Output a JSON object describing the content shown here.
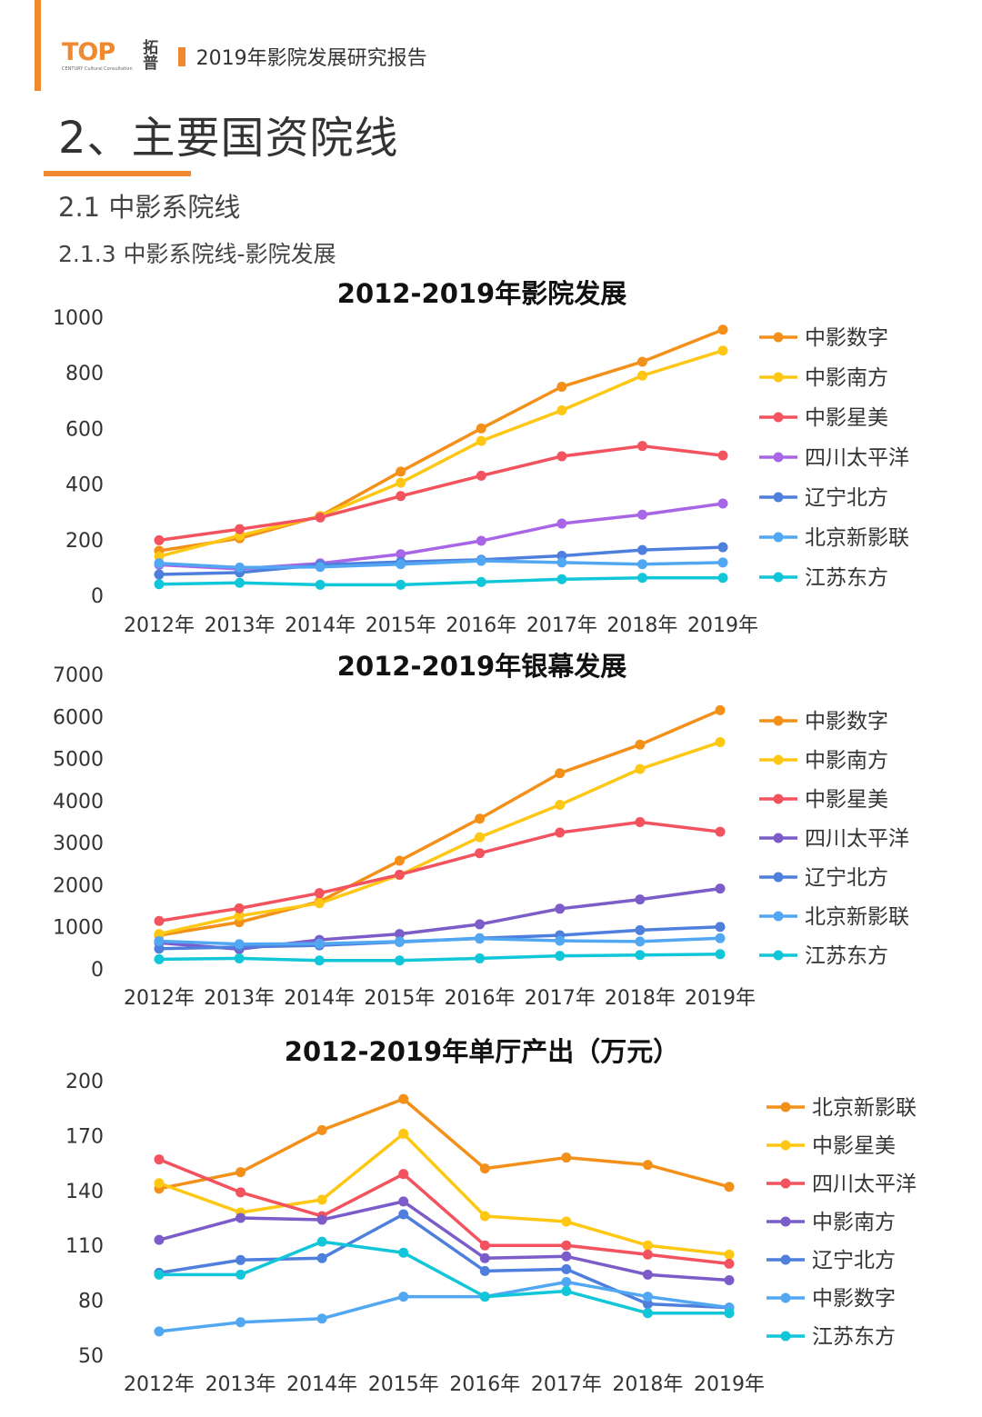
{
  "header": {
    "logo_text": "TOP",
    "logo_sub": "CENTURY Cultural Consultation",
    "logo_cn": "拓普",
    "report_title": "2019年影院发展研究报告"
  },
  "section": {
    "title": "2、主要国资院线",
    "subtitle": "2.1 中影系院线",
    "subsubtitle": "2.1.3 中影系院线-影院发展"
  },
  "colors": {
    "accent": "#f08a30",
    "palette": [
      "#f39019",
      "#fdc713",
      "#f2535e",
      "#a866e6",
      "#4f7fdc",
      "#52a7f2",
      "#12c6d9"
    ]
  },
  "chart_data": [
    {
      "type": "line",
      "title": "2012-2019年影院发展",
      "categories": [
        "2012年",
        "2013年",
        "2014年",
        "2015年",
        "2016年",
        "2017年",
        "2018年",
        "2019年"
      ],
      "ylim": [
        0,
        1000
      ],
      "yticks": [
        "0",
        "200",
        "400",
        "600",
        "800",
        "1000"
      ],
      "legend_position": "right",
      "series": [
        {
          "name": "中影数字",
          "color": "#f39019",
          "values": [
            160,
            205,
            285,
            445,
            600,
            750,
            840,
            955
          ]
        },
        {
          "name": "中影南方",
          "color": "#fdc713",
          "values": [
            140,
            215,
            285,
            405,
            555,
            665,
            790,
            880
          ]
        },
        {
          "name": "中影星美",
          "color": "#f2535e",
          "values": [
            198,
            238,
            280,
            357,
            430,
            500,
            537,
            503
          ]
        },
        {
          "name": "四川太平洋",
          "color": "#a866e6",
          "values": [
            110,
            95,
            115,
            148,
            196,
            258,
            290,
            330
          ]
        },
        {
          "name": "辽宁北方",
          "color": "#4f7fdc",
          "values": [
            75,
            82,
            110,
            120,
            128,
            142,
            163,
            173
          ]
        },
        {
          "name": "北京新影联",
          "color": "#52a7f2",
          "values": [
            115,
            100,
            102,
            112,
            124,
            118,
            112,
            118
          ]
        },
        {
          "name": "江苏东方",
          "color": "#12c6d9",
          "values": [
            40,
            45,
            38,
            38,
            48,
            58,
            63,
            63
          ]
        }
      ]
    },
    {
      "type": "line",
      "title": "2012-2019年银幕发展",
      "categories": [
        "2012年",
        "2013年",
        "2014年",
        "2015年",
        "2016年",
        "2017年",
        "2018年",
        "2019年"
      ],
      "ylim": [
        0,
        7000
      ],
      "yticks": [
        "0",
        "1000",
        "2000",
        "3000",
        "4000",
        "5000",
        "6000",
        "7000"
      ],
      "legend_position": "right",
      "series": [
        {
          "name": "中影数字",
          "color": "#f39019",
          "values": [
            800,
            1110,
            1600,
            2570,
            3570,
            4650,
            5330,
            6150
          ]
        },
        {
          "name": "中影南方",
          "color": "#fdc713",
          "values": [
            830,
            1260,
            1560,
            2230,
            3130,
            3900,
            4750,
            5390
          ]
        },
        {
          "name": "中影星美",
          "color": "#f2535e",
          "values": [
            1140,
            1440,
            1800,
            2240,
            2750,
            3240,
            3490,
            3260
          ]
        },
        {
          "name": "四川太平洋",
          "color": "#7b5cc9",
          "values": [
            620,
            470,
            690,
            830,
            1060,
            1430,
            1650,
            1910
          ]
        },
        {
          "name": "辽宁北方",
          "color": "#4f7fdc",
          "values": [
            480,
            520,
            560,
            640,
            730,
            800,
            920,
            1000
          ]
        },
        {
          "name": "北京新影联",
          "color": "#52a7f2",
          "values": [
            660,
            590,
            600,
            650,
            720,
            670,
            650,
            730
          ]
        },
        {
          "name": "江苏东方",
          "color": "#12c6d9",
          "values": [
            230,
            250,
            200,
            200,
            250,
            310,
            330,
            350
          ]
        }
      ]
    },
    {
      "type": "line",
      "title": "2012-2019年单厅产出（万元）",
      "categories": [
        "2012年",
        "2013年",
        "2014年",
        "2015年",
        "2016年",
        "2017年",
        "2018年",
        "2019年"
      ],
      "ylim": [
        50,
        200
      ],
      "yticks": [
        "50",
        "80",
        "110",
        "140",
        "170",
        "200"
      ],
      "legend_position": "right",
      "series": [
        {
          "name": "北京新影联",
          "color": "#f39019",
          "values": [
            141,
            150,
            173,
            190,
            152,
            158,
            154,
            142
          ]
        },
        {
          "name": "中影星美",
          "color": "#fdc713",
          "values": [
            144,
            128,
            135,
            171,
            126,
            123,
            110,
            105
          ]
        },
        {
          "name": "四川太平洋",
          "color": "#f2535e",
          "values": [
            157,
            139,
            126,
            149,
            110,
            110,
            105,
            100
          ]
        },
        {
          "name": "中影南方",
          "color": "#7b5cc9",
          "values": [
            113,
            125,
            124,
            134,
            103,
            104,
            94,
            91
          ]
        },
        {
          "name": "辽宁北方",
          "color": "#4f7fdc",
          "values": [
            95,
            102,
            103,
            127,
            96,
            97,
            78,
            76
          ]
        },
        {
          "name": "中影数字",
          "color": "#52a7f2",
          "values": [
            63,
            68,
            70,
            82,
            82,
            90,
            82,
            76
          ]
        },
        {
          "name": "江苏东方",
          "color": "#12c6d9",
          "values": [
            94,
            94,
            112,
            106,
            82,
            85,
            73,
            73
          ]
        }
      ]
    }
  ]
}
